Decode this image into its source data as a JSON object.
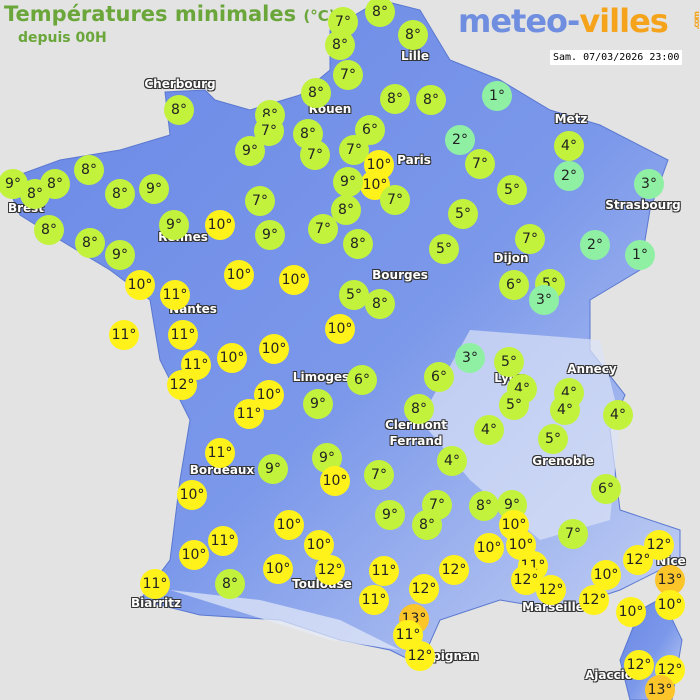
{
  "header": {
    "title": "Températures minimales",
    "unit": "(°C)",
    "subtitle": "depuis 00H",
    "logo": {
      "part1": "meteo-",
      "part2": "villes",
      "suffix": ".com"
    },
    "timestamp": "Sam. 07/03/2026 23:00"
  },
  "colors": {
    "cold": "#8ff0a4",
    "mild": "#c2f23c",
    "warm": "#fff21a",
    "hot": "#fcc62a",
    "land": "#6f8ee8",
    "sea": "#e3e3e3"
  },
  "cities": [
    "Cherbourg",
    "Lille",
    "Rouen",
    "Paris",
    "Metz",
    "Strasbourg",
    "Brest",
    "Rennes",
    "Dijon",
    "Bourges",
    "Nantes",
    "Limoges",
    "Lyon",
    "Annecy",
    "Clermont",
    "Ferrand",
    "Grenoble",
    "Bordeaux",
    "Toulouse",
    "Marseille",
    "Nice",
    "Biarritz",
    "Perpignan",
    "Ajaccio"
  ],
  "temperatures": [
    7,
    8,
    8,
    8,
    7,
    8,
    8,
    8,
    7,
    8,
    8,
    8,
    1,
    6,
    9,
    7,
    7,
    10,
    2,
    7,
    10,
    9,
    7,
    8,
    4,
    2,
    5,
    3,
    8,
    8,
    9,
    8,
    8,
    9,
    7,
    8,
    8,
    9,
    10,
    9,
    7,
    8,
    5,
    5,
    7,
    2,
    1,
    9,
    10,
    11,
    10,
    10,
    6,
    5,
    3,
    5,
    8,
    11,
    11,
    10,
    11,
    10,
    10,
    12,
    10,
    11,
    6,
    9,
    6,
    3,
    5,
    4,
    5,
    4,
    4,
    4,
    8,
    4,
    5,
    4,
    11,
    9,
    9,
    10,
    7,
    6,
    10,
    7,
    8,
    9,
    9,
    8,
    10,
    10,
    11,
    10,
    10,
    10,
    7,
    12,
    12,
    10,
    10,
    12,
    11,
    12,
    11,
    12,
    12,
    10,
    13,
    11,
    8,
    12,
    11,
    12,
    10,
    10,
    13,
    11,
    12,
    12,
    12,
    13
  ]
}
